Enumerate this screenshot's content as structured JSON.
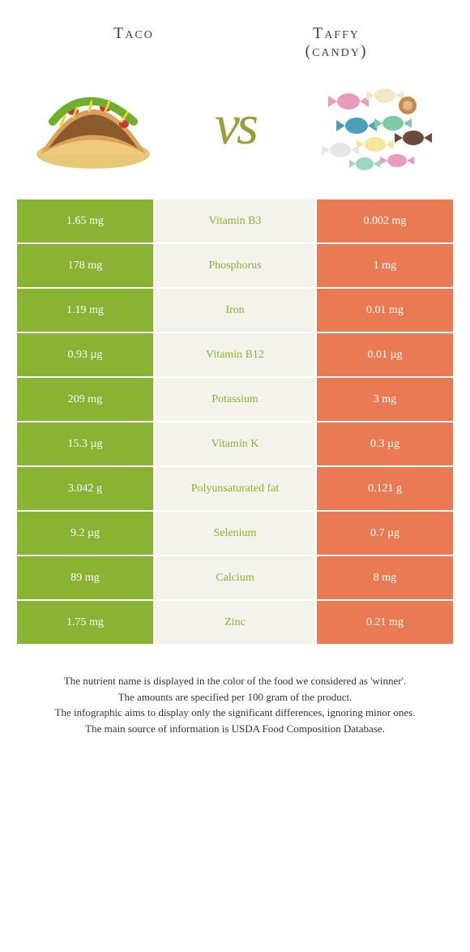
{
  "left_food": {
    "title": "Taco"
  },
  "right_food": {
    "title": "Taffy",
    "subtitle": "(candy)"
  },
  "vs_label": "vs",
  "colors": {
    "left_bg": "#8ab233",
    "right_bg": "#e87b53",
    "mid_bg": "#f3f3eb",
    "nutrient_text_left": "#8ab233",
    "nutrient_text_right": "#e87b53"
  },
  "rows": [
    {
      "left": "1.65 mg",
      "name": "Vitamin B3",
      "right": "0.002 mg",
      "winner": "left"
    },
    {
      "left": "178 mg",
      "name": "Phosphorus",
      "right": "1 mg",
      "winner": "left"
    },
    {
      "left": "1.19 mg",
      "name": "Iron",
      "right": "0.01 mg",
      "winner": "left"
    },
    {
      "left": "0.93 µg",
      "name": "Vitamin B12",
      "right": "0.01 µg",
      "winner": "left"
    },
    {
      "left": "209 mg",
      "name": "Potassium",
      "right": "3 mg",
      "winner": "left"
    },
    {
      "left": "15.3 µg",
      "name": "Vitamin K",
      "right": "0.3 µg",
      "winner": "left"
    },
    {
      "left": "3.042 g",
      "name": "Polyunsaturated fat",
      "right": "0.121 g",
      "winner": "left"
    },
    {
      "left": "9.2 µg",
      "name": "Selenium",
      "right": "0.7 µg",
      "winner": "left"
    },
    {
      "left": "89 mg",
      "name": "Calcium",
      "right": "8 mg",
      "winner": "left"
    },
    {
      "left": "1.75 mg",
      "name": "Zinc",
      "right": "0.21 mg",
      "winner": "left"
    }
  ],
  "footer_lines": [
    "The nutrient name is displayed in the color of the food we considered as 'winner'.",
    "The amounts are specified per 100 gram of the product.",
    "The infographic aims to display only the significant differences, ignoring minor ones.",
    "The main source of information is USDA Food Composition Database."
  ]
}
